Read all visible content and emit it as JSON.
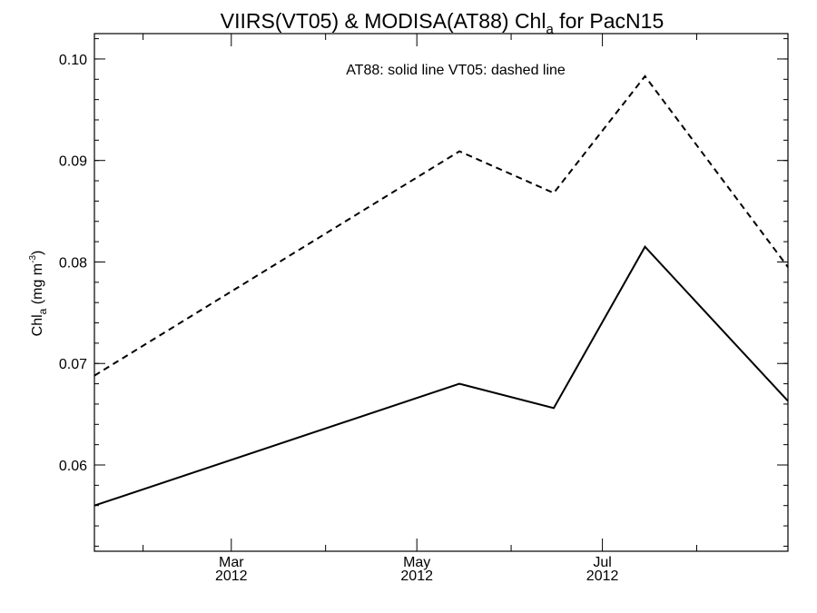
{
  "chart_data": {
    "type": "line",
    "title": {
      "main": "VIIRS(VT05) & MODISA(AT88)  Chl",
      "subscript": "a",
      "suffix": " for PacN15"
    },
    "annotation": "AT88: solid line   VT05: dashed line",
    "ylabel": {
      "main": "Chl",
      "subscript": "a",
      "units_prefix": " (mg m",
      "units_superscript": "-3",
      "units_suffix": ")"
    },
    "xlabel": "",
    "xlim": [
      "2012-01-16",
      "2012-08-31"
    ],
    "ylim": [
      0.0515,
      0.1025
    ],
    "y_ticks": [
      {
        "value": 0.06,
        "label": "0.06"
      },
      {
        "value": 0.07,
        "label": "0.07"
      },
      {
        "value": 0.08,
        "label": "0.08"
      },
      {
        "value": 0.09,
        "label": "0.09"
      },
      {
        "value": 0.1,
        "label": "0.10"
      }
    ],
    "y_minor_step": 0.002,
    "x_major_ticks": [
      {
        "date": "2012-03-01",
        "month": "Mar",
        "year": "2012"
      },
      {
        "date": "2012-05-01",
        "month": "May",
        "year": "2012"
      },
      {
        "date": "2012-07-01",
        "month": "Jul",
        "year": "2012"
      }
    ],
    "x_minor_ticks": [
      "2012-02-01",
      "2012-04-01",
      "2012-06-01",
      "2012-08-01"
    ],
    "grid": false,
    "legend": "none",
    "series": [
      {
        "style": "solid",
        "color": "#000000",
        "points": [
          {
            "x": "2012-01-16",
            "y": 0.056
          },
          {
            "x": "2012-05-15",
            "y": 0.068
          },
          {
            "x": "2012-06-15",
            "y": 0.0656
          },
          {
            "x": "2012-07-15",
            "y": 0.0815
          },
          {
            "x": "2012-08-31",
            "y": 0.0663
          }
        ]
      },
      {
        "style": "dashed",
        "color": "#000000",
        "points": [
          {
            "x": "2012-01-16",
            "y": 0.0688
          },
          {
            "x": "2012-05-15",
            "y": 0.0909
          },
          {
            "x": "2012-06-15",
            "y": 0.0868
          },
          {
            "x": "2012-07-15",
            "y": 0.0983
          },
          {
            "x": "2012-08-31",
            "y": 0.0795
          }
        ]
      }
    ]
  }
}
